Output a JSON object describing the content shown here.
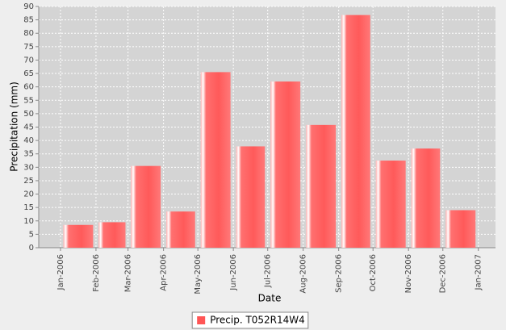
{
  "chart_data": {
    "type": "bar",
    "x_label": "Date",
    "y_label": "Precipitation (mm)",
    "xticks": [
      "Jan-2006",
      "Feb-2006",
      "Mar-2006",
      "Apr-2006",
      "May-2006",
      "Jun-2006",
      "Jul-2006",
      "Aug-2006",
      "Sep-2006",
      "Oct-2006",
      "Nov-2006",
      "Dec-2006",
      "Jan-2007"
    ],
    "series": [
      {
        "name": "Precip. T052R14W4",
        "color": "#ff5555",
        "values": [
          8.5,
          9.5,
          30.5,
          13.5,
          65.5,
          37.8,
          62,
          45.8,
          86.8,
          32.5,
          37,
          14
        ]
      }
    ],
    "ylim": [
      0,
      90
    ],
    "yticks": [
      0,
      5,
      10,
      15,
      20,
      25,
      30,
      35,
      40,
      45,
      50,
      55,
      60,
      65,
      70,
      75,
      80,
      85,
      90
    ],
    "grid": true,
    "legend": "bottom"
  }
}
